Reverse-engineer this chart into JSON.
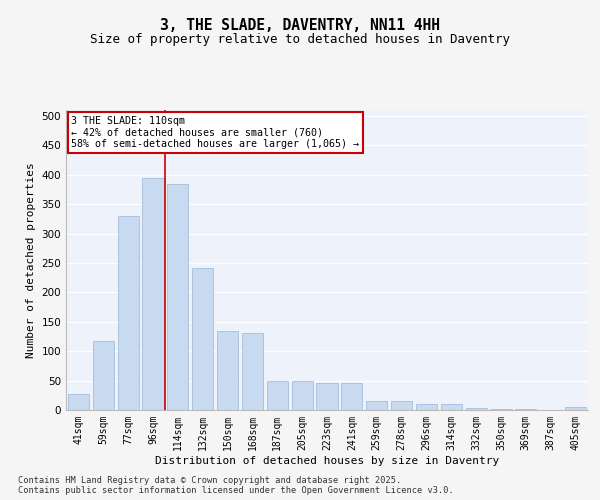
{
  "title": "3, THE SLADE, DAVENTRY, NN11 4HH",
  "subtitle": "Size of property relative to detached houses in Daventry",
  "xlabel": "Distribution of detached houses by size in Daventry",
  "ylabel": "Number of detached properties",
  "categories": [
    "41sqm",
    "59sqm",
    "77sqm",
    "96sqm",
    "114sqm",
    "132sqm",
    "150sqm",
    "168sqm",
    "187sqm",
    "205sqm",
    "223sqm",
    "241sqm",
    "259sqm",
    "278sqm",
    "296sqm",
    "314sqm",
    "332sqm",
    "350sqm",
    "369sqm",
    "387sqm",
    "405sqm"
  ],
  "values": [
    27,
    117,
    330,
    395,
    385,
    242,
    135,
    131,
    50,
    50,
    46,
    46,
    16,
    16,
    10,
    10,
    3,
    1,
    1,
    0,
    5
  ],
  "bar_color": "#c8daf0",
  "bar_edge_color": "#9ab5d8",
  "vline_color": "#cc0000",
  "vline_x": 3.5,
  "annotation_text": "3 THE SLADE: 110sqm\n← 42% of detached houses are smaller (760)\n58% of semi-detached houses are larger (1,065) →",
  "annotation_box_facecolor": "#ffffff",
  "annotation_box_edgecolor": "#cc0000",
  "ylim": [
    0,
    510
  ],
  "yticks": [
    0,
    50,
    100,
    150,
    200,
    250,
    300,
    350,
    400,
    450,
    500
  ],
  "bg_color": "#edf2fb",
  "grid_color": "#ffffff",
  "footer": "Contains HM Land Registry data © Crown copyright and database right 2025.\nContains public sector information licensed under the Open Government Licence v3.0."
}
